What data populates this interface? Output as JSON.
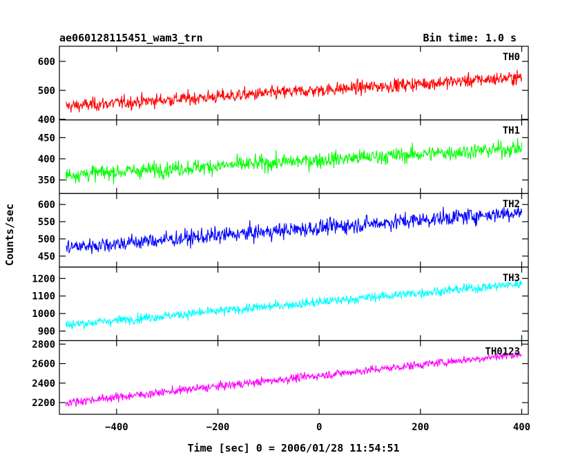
{
  "chart_data": {
    "type": "line",
    "title_left": "ae060128115451_wam3_trn",
    "title_right": "Bin time: 1.0 s",
    "xlabel": "Time [sec] 0 = 2006/01/28 11:54:51",
    "ylabel": "Counts/sec",
    "xlim": [
      -513,
      413
    ],
    "x_data_range": [
      -500,
      400
    ],
    "x_ticks": [
      -400,
      -200,
      0,
      200,
      400
    ],
    "x_tick_labels": [
      "−400",
      "−200",
      "0",
      "200",
      "400"
    ],
    "grid": false,
    "panels": [
      {
        "name": "TH0",
        "color": "#ff0000",
        "ylim": [
          398,
          652
        ],
        "yticks": [
          400,
          500,
          600
        ],
        "start_level": 445,
        "end_level": 545,
        "noise": 30
      },
      {
        "name": "TH1",
        "color": "#00ff00",
        "ylim": [
          318,
          492
        ],
        "yticks": [
          350,
          400,
          450
        ],
        "start_level": 362,
        "end_level": 425,
        "noise": 24
      },
      {
        "name": "TH2",
        "color": "#0000ff",
        "ylim": [
          418,
          632
        ],
        "yticks": [
          450,
          500,
          550,
          600
        ],
        "start_level": 475,
        "end_level": 578,
        "noise": 30
      },
      {
        "name": "TH3",
        "color": "#00ffff",
        "ylim": [
          845,
          1265
        ],
        "yticks": [
          900,
          1000,
          1100,
          1200
        ],
        "start_level": 935,
        "end_level": 1170,
        "noise": 35
      },
      {
        "name": "TH0123",
        "color": "#ff00ff",
        "ylim": [
          2080,
          2835
        ],
        "yticks": [
          2200,
          2400,
          2600,
          2800
        ],
        "start_level": 2200,
        "end_level": 2700,
        "noise": 55
      }
    ]
  }
}
